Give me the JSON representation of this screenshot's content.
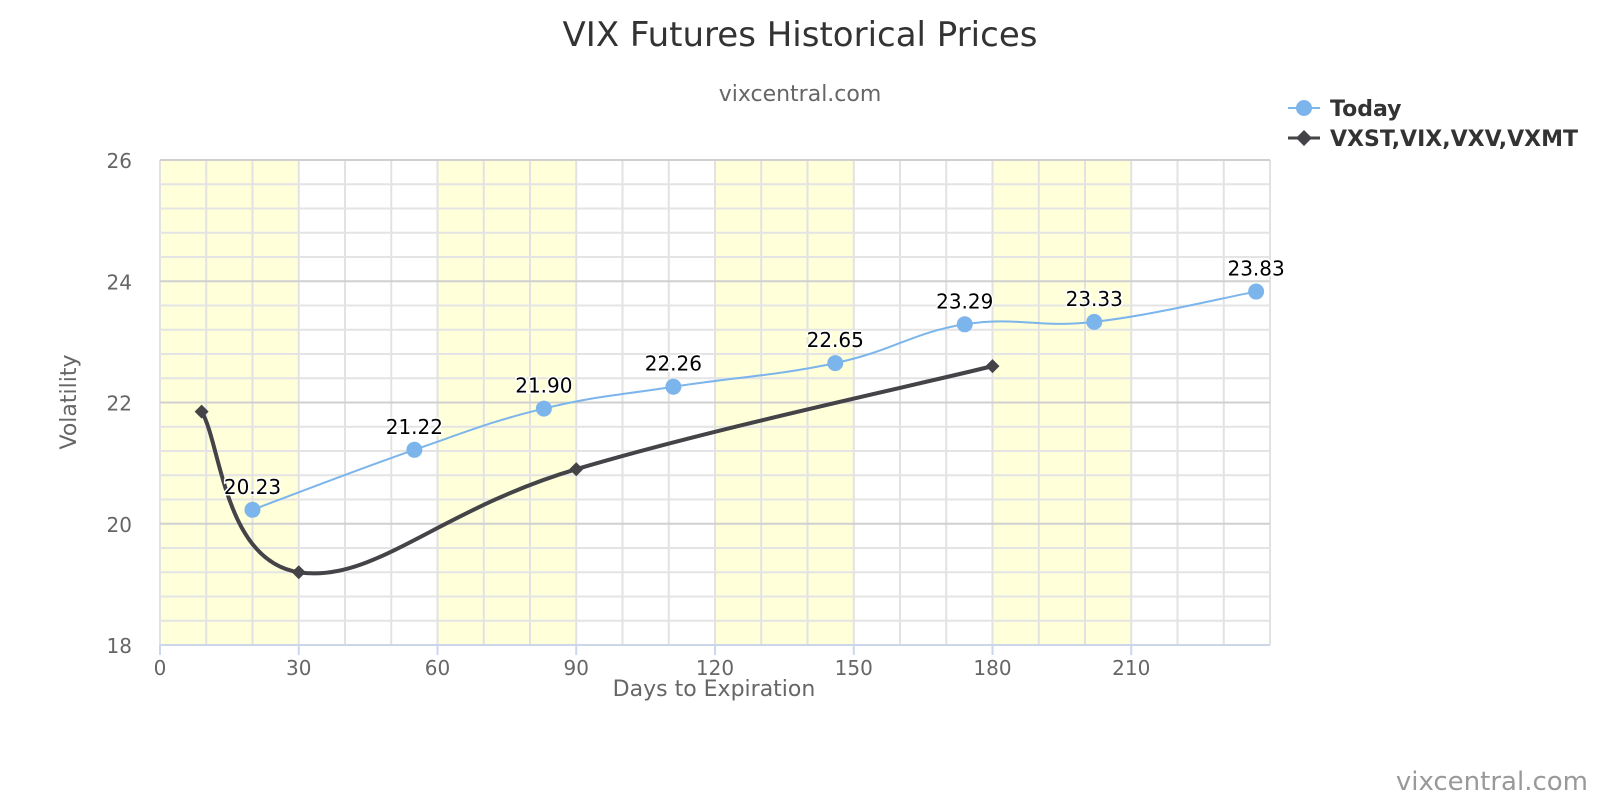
{
  "chart_data": {
    "type": "line",
    "title": "VIX Futures Historical Prices",
    "subtitle": "vixcentral.com",
    "credit": "vixcentral.com",
    "xlabel": "Days to Expiration",
    "ylabel": "Volatility",
    "xlim": [
      0,
      240
    ],
    "ylim": [
      18,
      26
    ],
    "x_ticks": [
      0,
      30,
      60,
      90,
      120,
      150,
      180,
      210
    ],
    "y_ticks": [
      18,
      20,
      22,
      24,
      26
    ],
    "x_minor_step": 10,
    "y_minor_step": 0.4,
    "grid": true,
    "shaded_bands": [
      [
        0,
        30
      ],
      [
        60,
        90
      ],
      [
        120,
        150
      ],
      [
        180,
        210
      ]
    ],
    "band_color": "#ffffd9",
    "legend_position": "top-right",
    "series": [
      {
        "name": "Today",
        "color": "#7cb5ec",
        "marker": "circle",
        "data_labels": true,
        "x": [
          20,
          55,
          83,
          111,
          146,
          174,
          202,
          237
        ],
        "y": [
          20.23,
          21.22,
          21.9,
          22.26,
          22.65,
          23.29,
          23.33,
          23.83
        ],
        "labels": [
          "20.23",
          "21.22",
          "21.90",
          "22.26",
          "22.65",
          "23.29",
          "23.33",
          "23.83"
        ]
      },
      {
        "name": "VXST,VIX,VXV,VXMT",
        "color": "#434348",
        "marker": "diamond",
        "data_labels": false,
        "x": [
          9,
          30,
          90,
          180
        ],
        "y": [
          21.85,
          19.2,
          20.9,
          22.6
        ]
      }
    ]
  }
}
